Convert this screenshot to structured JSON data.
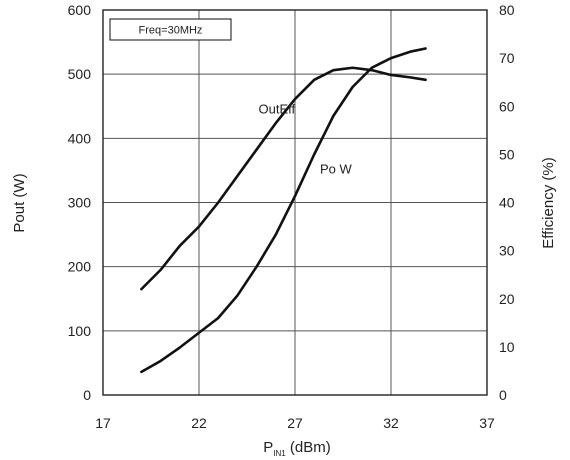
{
  "chart_data": {
    "type": "line",
    "xlabel_main": "P",
    "xlabel_sub": "IN1",
    "xlabel_rest": " (dBm)",
    "ylabel_left": "Pout (W)",
    "ylabel_right": "Efficiency (%)",
    "legend_text": "Freq=30MHz",
    "xlim": [
      17,
      37
    ],
    "ylim_left": [
      0,
      600
    ],
    "ylim_right": [
      0,
      80
    ],
    "x_ticks": [
      17,
      22,
      27,
      32,
      37
    ],
    "y_left_ticks": [
      0,
      100,
      200,
      300,
      400,
      500,
      600
    ],
    "y_right_ticks": [
      0,
      10,
      20,
      30,
      40,
      50,
      60,
      70,
      80
    ],
    "x_tick_labels": [
      "17",
      "22",
      "27",
      "32",
      "37"
    ],
    "y_left_tick_labels": [
      "0",
      "100",
      "200",
      "300",
      "400",
      "500",
      "600"
    ],
    "y_right_tick_labels": [
      "0",
      "10",
      "20",
      "30",
      "40",
      "50",
      "60",
      "70",
      "80"
    ],
    "grid": true,
    "series": [
      {
        "name": "Po W",
        "axis": "left",
        "x": [
          19,
          20,
          21,
          22,
          23,
          24,
          25,
          26,
          27,
          28,
          29,
          30,
          31,
          32,
          33,
          33.8
        ],
        "y": [
          36,
          53,
          74,
          97,
          120,
          155,
          200,
          250,
          310,
          375,
          435,
          480,
          510,
          525,
          535,
          540
        ]
      },
      {
        "name": "OutEff",
        "axis": "right",
        "x": [
          19,
          20,
          21,
          22,
          23,
          24,
          25,
          26,
          27,
          28,
          29,
          30,
          31,
          32,
          33,
          33.8
        ],
        "y": [
          22,
          26,
          31,
          35,
          40,
          45.5,
          51,
          56.5,
          61.5,
          65.5,
          67.5,
          68,
          67.5,
          66.5,
          66,
          65.5
        ]
      }
    ],
    "annotations": [
      {
        "text": "OutEff",
        "x": 25.1,
        "y": 58.5,
        "axis": "right"
      },
      {
        "text": "Po W",
        "x": 28.3,
        "y": 345,
        "axis": "left"
      }
    ]
  }
}
